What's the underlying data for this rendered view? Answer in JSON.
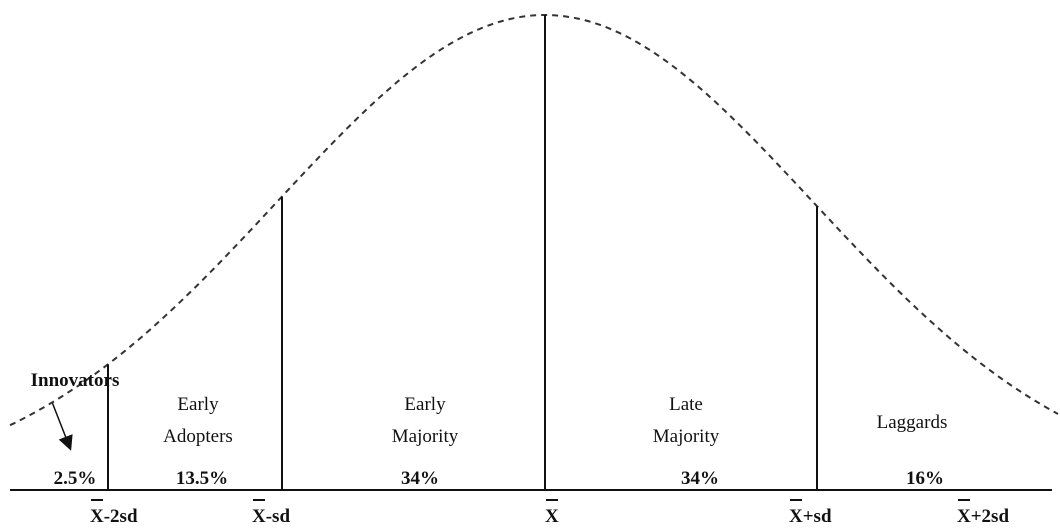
{
  "segments": [
    {
      "label": [
        "Innovators"
      ],
      "share": "2.5%"
    },
    {
      "label": [
        "Early",
        "Adopters"
      ],
      "share": "13.5%"
    },
    {
      "label": [
        "Early",
        "Majority"
      ],
      "share": "34%"
    },
    {
      "label": [
        "Late",
        "Majority"
      ],
      "share": "34%"
    },
    {
      "label": [
        "Laggards"
      ],
      "share": "16%"
    }
  ],
  "axis_labels": [
    "X-2sd",
    "X-sd",
    "X",
    "X+sd",
    "X+2sd"
  ]
}
